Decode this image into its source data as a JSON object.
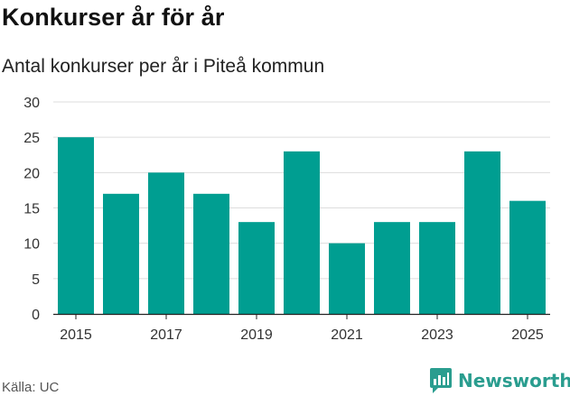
{
  "header": {
    "title": "Konkurser år för år",
    "subtitle": "Antal konkurser per år i Piteå kommun"
  },
  "footer": {
    "source": "Källa: UC",
    "brand": "Newsworthy",
    "brand_icon": "bar-chart-speech-icon",
    "brand_color": "#2a9d8f"
  },
  "colors": {
    "bar": "#009e91",
    "grid": "#dddddd",
    "axis": "#222222"
  },
  "chart_data": {
    "type": "bar",
    "title": "Konkurser år för år",
    "subtitle": "Antal konkurser per år i Piteå kommun",
    "xlabel": "",
    "ylabel": "",
    "categories": [
      2015,
      2016,
      2017,
      2018,
      2019,
      2020,
      2021,
      2022,
      2023,
      2024,
      2025
    ],
    "values": [
      25,
      17,
      20,
      17,
      13,
      23,
      10,
      13,
      13,
      23,
      16
    ],
    "x_ticks": [
      "2015",
      "2017",
      "2019",
      "2021",
      "2023",
      "2025"
    ],
    "y_ticks": [
      "0",
      "5",
      "10",
      "15",
      "20",
      "25",
      "30"
    ],
    "ylim": [
      0,
      30
    ],
    "grid": true,
    "legend": "none"
  }
}
